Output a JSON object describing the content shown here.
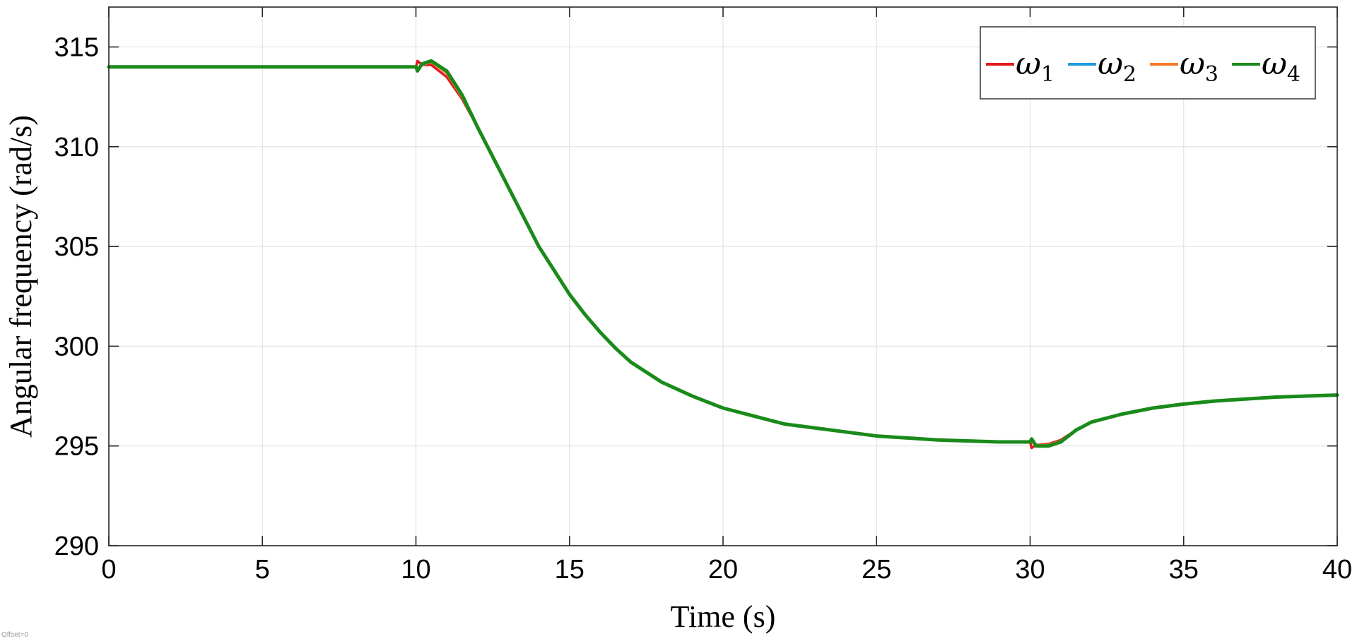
{
  "chart_data": {
    "type": "line",
    "title": "",
    "xlabel": "Time (s)",
    "ylabel": "Angular frequency (rad/s)",
    "xlim": [
      0,
      40
    ],
    "ylim": [
      290,
      317
    ],
    "xticks": [
      0,
      5,
      10,
      15,
      20,
      25,
      30,
      35,
      40
    ],
    "yticks": [
      290,
      295,
      300,
      305,
      310,
      315
    ],
    "grid": true,
    "legend_position": "top-right",
    "series": [
      {
        "name": "ω1",
        "symbol": "ω",
        "subscript": "1",
        "color": "#e31a1c",
        "x": [
          0,
          10,
          10.05,
          10.2,
          10.5,
          11,
          11.5,
          12,
          12.5,
          13,
          13.5,
          14,
          14.5,
          15,
          15.5,
          16,
          16.5,
          17,
          17.5,
          18,
          19,
          20,
          21,
          22,
          23,
          24,
          25,
          26,
          27,
          28,
          29,
          30,
          30.05,
          30.2,
          30.6,
          31,
          31.5,
          32,
          33,
          34,
          35,
          36,
          37,
          38,
          39,
          40
        ],
        "y": [
          314.0,
          314.0,
          314.3,
          314.1,
          314.1,
          313.5,
          312.4,
          311.0,
          309.5,
          308.0,
          306.5,
          305.0,
          303.8,
          302.6,
          301.6,
          300.7,
          299.9,
          299.2,
          298.7,
          298.2,
          297.5,
          296.9,
          296.5,
          296.1,
          295.9,
          295.7,
          295.5,
          295.4,
          295.3,
          295.25,
          295.2,
          295.2,
          294.9,
          295.05,
          295.1,
          295.3,
          295.8,
          296.2,
          296.6,
          296.9,
          297.1,
          297.25,
          297.35,
          297.45,
          297.5,
          297.55
        ]
      },
      {
        "name": "ω2",
        "symbol": "ω",
        "subscript": "2",
        "color": "#1f9bde",
        "x": [
          0,
          10,
          10.05,
          10.2,
          10.5,
          11,
          11.5,
          12,
          12.5,
          13,
          13.5,
          14,
          14.5,
          15,
          15.5,
          16,
          16.5,
          17,
          17.5,
          18,
          19,
          20,
          21,
          22,
          23,
          24,
          25,
          26,
          27,
          28,
          29,
          30,
          30.05,
          30.2,
          30.6,
          31,
          31.5,
          32,
          33,
          34,
          35,
          36,
          37,
          38,
          39,
          40
        ],
        "y": [
          314.0,
          314.0,
          313.9,
          314.1,
          314.25,
          313.7,
          312.5,
          311.0,
          309.5,
          308.0,
          306.5,
          305.0,
          303.8,
          302.6,
          301.6,
          300.7,
          299.9,
          299.2,
          298.7,
          298.2,
          297.5,
          296.9,
          296.5,
          296.1,
          295.9,
          295.7,
          295.5,
          295.4,
          295.3,
          295.25,
          295.2,
          295.2,
          295.2,
          295.05,
          295.05,
          295.25,
          295.8,
          296.2,
          296.6,
          296.9,
          297.1,
          297.25,
          297.35,
          297.45,
          297.5,
          297.55
        ]
      },
      {
        "name": "ω3",
        "symbol": "ω",
        "subscript": "3",
        "color": "#f47a2a",
        "x": [
          0,
          10,
          10.05,
          10.2,
          10.5,
          11,
          11.5,
          12,
          12.5,
          13,
          13.5,
          14,
          14.5,
          15,
          15.5,
          16,
          16.5,
          17,
          17.5,
          18,
          19,
          20,
          21,
          22,
          23,
          24,
          25,
          26,
          27,
          28,
          29,
          30,
          30.05,
          30.2,
          30.6,
          31,
          31.5,
          32,
          33,
          34,
          35,
          36,
          37,
          38,
          39,
          40
        ],
        "y": [
          314.0,
          314.0,
          313.9,
          314.1,
          314.25,
          313.7,
          312.5,
          311.0,
          309.5,
          308.0,
          306.5,
          305.0,
          303.8,
          302.6,
          301.6,
          300.7,
          299.9,
          299.2,
          298.7,
          298.2,
          297.5,
          296.9,
          296.5,
          296.1,
          295.9,
          295.7,
          295.5,
          295.4,
          295.3,
          295.25,
          295.2,
          295.2,
          295.2,
          295.05,
          295.05,
          295.25,
          295.8,
          296.2,
          296.6,
          296.9,
          297.1,
          297.25,
          297.35,
          297.45,
          297.5,
          297.55
        ]
      },
      {
        "name": "ω4",
        "symbol": "ω",
        "subscript": "4",
        "color": "#1a8a1a",
        "x": [
          0,
          10,
          10.05,
          10.2,
          10.5,
          11,
          11.5,
          12,
          12.5,
          13,
          13.5,
          14,
          14.5,
          15,
          15.5,
          16,
          16.5,
          17,
          17.5,
          18,
          19,
          20,
          21,
          22,
          23,
          24,
          25,
          26,
          27,
          28,
          29,
          30,
          30.05,
          30.2,
          30.6,
          31,
          31.5,
          32,
          33,
          34,
          35,
          36,
          37,
          38,
          39,
          40
        ],
        "y": [
          314.0,
          314.0,
          313.8,
          314.15,
          314.3,
          313.8,
          312.6,
          311.0,
          309.5,
          308.0,
          306.5,
          305.0,
          303.8,
          302.6,
          301.6,
          300.7,
          299.9,
          299.2,
          298.7,
          298.2,
          297.5,
          296.9,
          296.5,
          296.1,
          295.9,
          295.7,
          295.5,
          295.4,
          295.3,
          295.25,
          295.2,
          295.2,
          295.35,
          295.0,
          295.0,
          295.2,
          295.8,
          296.2,
          296.6,
          296.9,
          297.1,
          297.25,
          297.35,
          297.45,
          297.5,
          297.55
        ]
      }
    ]
  },
  "footer": {
    "offset_note": "Offset=0"
  }
}
